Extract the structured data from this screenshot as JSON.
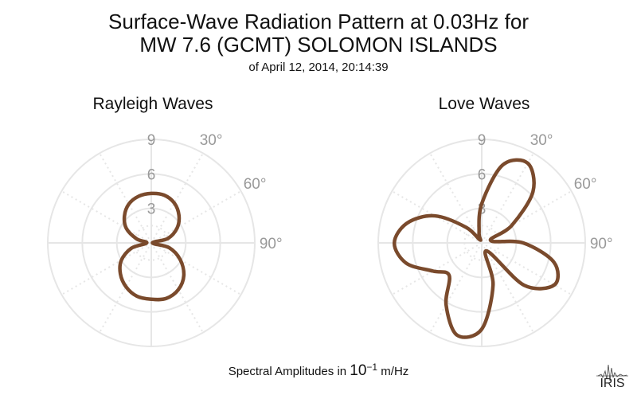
{
  "header": {
    "title_line1": "Surface-Wave Radiation Pattern at 0.03Hz for",
    "title_line2": "MW 7.6 (GCMT) SOLOMON ISLANDS",
    "subtitle": "of April 12, 2014, 20:14:39"
  },
  "footer": {
    "caption_prefix": "Spectral Amplitudes in ",
    "caption_base": "10",
    "caption_exp": "−1",
    "caption_unit": " m/Hz",
    "logo_text": "IRIS"
  },
  "colors": {
    "curve": "#7a4a2c",
    "grid": "#e6e6e6",
    "label": "#999999"
  },
  "chart_data": [
    {
      "type": "polar",
      "title": "Rayleigh Waves",
      "radial_ticks": [
        3,
        6,
        9
      ],
      "radial_tick_labels": [
        "3",
        "6",
        "9"
      ],
      "angle_tick_labels": [
        "30°",
        "60°",
        "90°"
      ],
      "rmax": 9,
      "theta_unit": "degrees clockwise from north",
      "series": [
        {
          "theta": [
            0,
            15,
            30,
            45,
            60,
            75,
            90,
            105,
            120,
            135,
            150,
            165,
            180,
            195,
            210,
            225,
            240,
            255,
            270,
            285,
            300,
            315,
            330,
            345,
            360
          ],
          "r": [
            4.3,
            4.3,
            4.0,
            3.4,
            2.6,
            1.5,
            0.1,
            1.6,
            2.9,
            4.0,
            4.7,
            5.0,
            4.9,
            4.8,
            4.4,
            3.8,
            3.0,
            1.8,
            0.4,
            1.3,
            2.5,
            3.3,
            3.9,
            4.2,
            4.3
          ]
        }
      ]
    },
    {
      "type": "polar",
      "title": "Love Waves",
      "radial_ticks": [
        3,
        6,
        9
      ],
      "radial_tick_labels": [
        "3",
        "6",
        "9"
      ],
      "angle_tick_labels": [
        "30°",
        "60°",
        "90°"
      ],
      "rmax": 9,
      "theta_unit": "degrees clockwise from north",
      "series": [
        {
          "theta": [
            0,
            15,
            30,
            45,
            60,
            75,
            90,
            105,
            120,
            135,
            150,
            165,
            180,
            195,
            210,
            225,
            240,
            255,
            270,
            285,
            300,
            315,
            330,
            345,
            360
          ],
          "r": [
            3.4,
            7.0,
            8.0,
            6.3,
            3.0,
            0.8,
            3.6,
            6.5,
            7.3,
            5.2,
            0.8,
            3.8,
            7.5,
            8.3,
            6.2,
            4.0,
            4.9,
            6.8,
            7.6,
            6.7,
            4.7,
            1.9,
            0.3,
            0.9,
            3.4
          ]
        }
      ]
    }
  ]
}
